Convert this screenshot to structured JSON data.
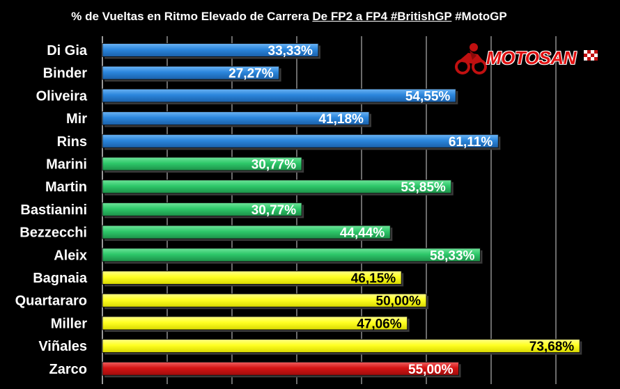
{
  "title": {
    "part1": "% de Vueltas en Ritmo Elevado de Carrera ",
    "part2": "De FP2 a FP4 #BritishGP",
    "part3": " #MotoGP"
  },
  "watermark": {
    "text": "MOTOSAN"
  },
  "colors": {
    "blue": "#2b86dc",
    "green": "#2ec86a",
    "yellow": "#ffff22",
    "red": "#d41414",
    "gridline": "#6b6b6b"
  },
  "chart_data": {
    "type": "bar",
    "orientation": "horizontal",
    "xlim": [
      0,
      100
    ],
    "grid": true,
    "categories": [
      "Di Gia",
      "Binder",
      "Oliveira",
      "Mir",
      "Rins",
      "Marini",
      "Martin",
      "Bastianini",
      "Bezzecchi",
      "Aleix",
      "Bagnaia",
      "Quartararo",
      "Miller",
      "Viñales",
      "Zarco"
    ],
    "values": [
      33.33,
      27.27,
      54.55,
      41.18,
      61.11,
      30.77,
      53.85,
      30.77,
      44.44,
      58.33,
      46.15,
      50.0,
      47.06,
      73.68,
      55.0
    ],
    "labels": [
      "33,33%",
      "27,27%",
      "54,55%",
      "41,18%",
      "61,11%",
      "30,77%",
      "53,85%",
      "30,77%",
      "44,44%",
      "58,33%",
      "46,15%",
      "50,00%",
      "47,06%",
      "73,68%",
      "55,00%"
    ],
    "bar_colors": [
      "blue",
      "blue",
      "blue",
      "blue",
      "blue",
      "green",
      "green",
      "green",
      "green",
      "green",
      "yellow",
      "yellow",
      "yellow",
      "yellow",
      "red"
    ]
  }
}
